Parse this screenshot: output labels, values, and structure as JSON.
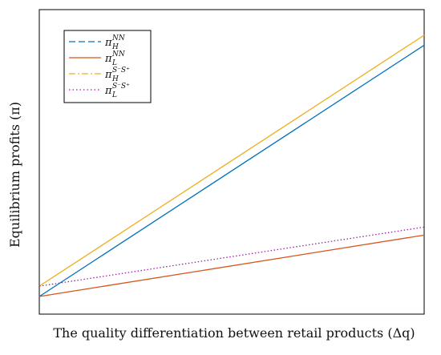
{
  "chart_data": {
    "type": "line",
    "title": "",
    "xlabel": "The quality differentiation between retail products (Δq)",
    "ylabel": "Equilibrium profits (π)",
    "xlim": [
      0,
      1
    ],
    "ylim": [
      0,
      1
    ],
    "grid": false,
    "show_ticks": false,
    "legend_position": "top-left",
    "series": [
      {
        "key": "pi_H_NN",
        "name": "π_H^NN",
        "legend": {
          "base": "π",
          "sub": "H",
          "sup": "NN"
        },
        "color": "#0072BD",
        "legend_dash": "8,4",
        "line_dash": "none",
        "x": [
          0,
          1
        ],
        "y": [
          0.0,
          0.876
        ]
      },
      {
        "key": "pi_L_NN",
        "name": "π_L^NN",
        "legend": {
          "base": "π",
          "sub": "L",
          "sup": "NN"
        },
        "color": "#D95319",
        "legend_dash": "none",
        "line_dash": "none",
        "x": [
          0,
          1
        ],
        "y": [
          0.0,
          0.214
        ]
      },
      {
        "key": "pi_H_SS",
        "name": "π_H^{S−S+}",
        "legend": {
          "base": "π",
          "sub": "H",
          "sup": "S⁻S⁺"
        },
        "color": "#EDB120",
        "legend_dash": "8,3,2,3",
        "line_dash": "none",
        "x": [
          0,
          1
        ],
        "y": [
          0.036,
          0.911
        ]
      },
      {
        "key": "pi_L_SS",
        "name": "π_L^{S−S+}",
        "legend": {
          "base": "π",
          "sub": "L",
          "sup": "S⁻S⁺"
        },
        "color": "#A020A0",
        "legend_dash": "1.5,3",
        "line_dash": "1.5,2.5",
        "x": [
          0,
          1
        ],
        "y": [
          0.036,
          0.242
        ]
      }
    ]
  }
}
